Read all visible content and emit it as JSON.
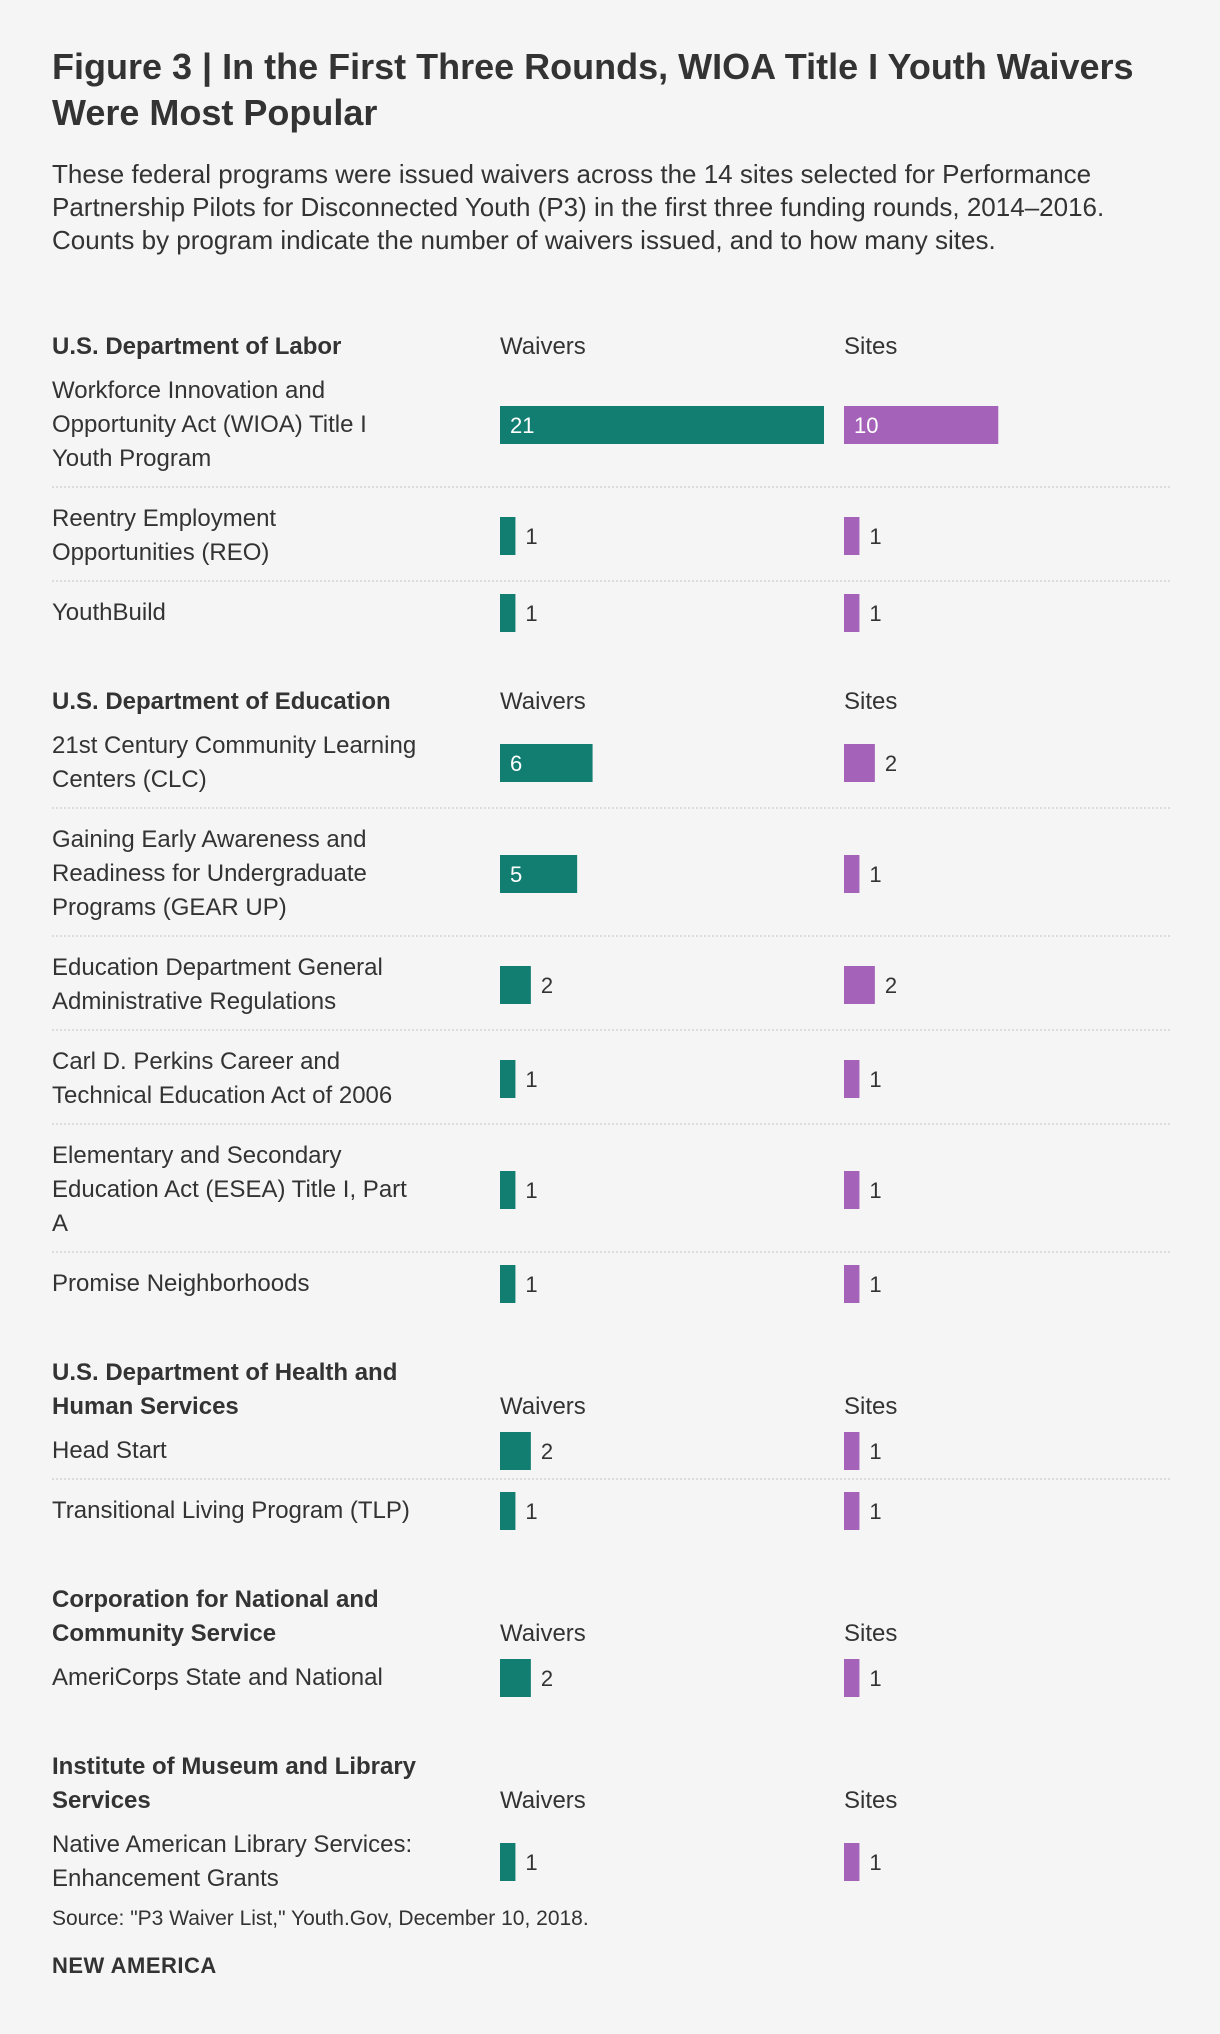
{
  "title": "Figure 3 | In the First Three Rounds, WIOA Title I Youth Waivers Were Most Popular",
  "subtitle": "These federal programs were issued waivers across the 14 sites selected for Performance Partnership Pilots for Disconnected Youth (P3) in the first three funding rounds, 2014–2016. Counts by program indicate the number of waivers issued, and to how many sites.",
  "source": "Source: \"P3 Waiver List,\" Youth.Gov, December 10, 2018.",
  "brand": "NEW AMERICA",
  "colors": {
    "waivers": "#127d71",
    "sites": "#a463b8",
    "divider": "#c4c4c4",
    "text": "#333333",
    "background": "#f5f5f5"
  },
  "chart_data": {
    "type": "bar",
    "orientation": "horizontal",
    "title": "Figure 3 | In the First Three Rounds, WIOA Title I Youth Waivers Were Most Popular",
    "series_names": [
      "Waivers",
      "Sites"
    ],
    "scale_max": 21,
    "groups": [
      {
        "name": "U.S. Department of Labor",
        "name_lines": [
          "U.S. Department of Labor"
        ],
        "waivers_label": "Waivers",
        "sites_label": "Sites",
        "items": [
          {
            "program": "Workforce Innovation and Opportunity Act (WIOA) Title I Youth Program",
            "lines": [
              "Workforce Innovation and",
              "Opportunity Act (WIOA) Title I",
              "Youth Program"
            ],
            "waivers": 21,
            "sites": 10
          },
          {
            "program": "Reentry Employment Opportunities (REO)",
            "lines": [
              "Reentry Employment",
              "Opportunities (REO)"
            ],
            "waivers": 1,
            "sites": 1
          },
          {
            "program": "YouthBuild",
            "lines": [
              "YouthBuild"
            ],
            "waivers": 1,
            "sites": 1
          }
        ]
      },
      {
        "name": "U.S. Department of Education",
        "name_lines": [
          "U.S. Department of Education"
        ],
        "waivers_label": "Waivers",
        "sites_label": "Sites",
        "items": [
          {
            "program": "21st Century Community Learning Centers (CLC)",
            "lines": [
              "21st Century Community Learning",
              "Centers (CLC)"
            ],
            "waivers": 6,
            "sites": 2
          },
          {
            "program": "Gaining Early Awareness and Readiness for Undergraduate Programs (GEAR UP)",
            "lines": [
              "Gaining Early Awareness and",
              "Readiness for Undergraduate",
              "Programs (GEAR UP)"
            ],
            "waivers": 5,
            "sites": 1
          },
          {
            "program": "Education Department General Administrative Regulations",
            "lines": [
              "Education Department General",
              "Administrative Regulations"
            ],
            "waivers": 2,
            "sites": 2
          },
          {
            "program": "Carl D. Perkins Career and Technical Education Act of 2006",
            "lines": [
              "Carl D. Perkins Career and",
              "Technical Education Act of 2006"
            ],
            "waivers": 1,
            "sites": 1
          },
          {
            "program": "Elementary and Secondary Education Act (ESEA) Title I, Part A",
            "lines": [
              "Elementary and Secondary",
              "Education Act (ESEA) Title I, Part",
              "A"
            ],
            "waivers": 1,
            "sites": 1
          },
          {
            "program": "Promise Neighborhoods",
            "lines": [
              "Promise Neighborhoods"
            ],
            "waivers": 1,
            "sites": 1
          }
        ]
      },
      {
        "name": "U.S. Department of Health and Human Services",
        "name_lines": [
          "U.S. Department of Health and",
          "Human Services"
        ],
        "waivers_label": "Waivers",
        "sites_label": "Sites",
        "items": [
          {
            "program": "Head Start",
            "lines": [
              "Head Start"
            ],
            "waivers": 2,
            "sites": 1
          },
          {
            "program": "Transitional Living Program (TLP)",
            "lines": [
              "Transitional Living Program (TLP)"
            ],
            "waivers": 1,
            "sites": 1
          }
        ]
      },
      {
        "name": "Corporation for National and Community Service",
        "name_lines": [
          "Corporation for National and",
          "Community Service"
        ],
        "waivers_label": "Waivers",
        "sites_label": "Sites",
        "items": [
          {
            "program": "AmeriCorps State and National",
            "lines": [
              "AmeriCorps State and National"
            ],
            "waivers": 2,
            "sites": 1
          }
        ]
      },
      {
        "name": "Institute of Museum and Library Services",
        "name_lines": [
          "Institute of Museum and Library",
          "Services"
        ],
        "waivers_label": "Waivers",
        "sites_label": "Sites",
        "items": [
          {
            "program": "Native American Library Services: Enhancement Grants",
            "lines": [
              "Native American Library Services:",
              "Enhancement Grants"
            ],
            "waivers": 1,
            "sites": 1
          }
        ]
      }
    ]
  }
}
